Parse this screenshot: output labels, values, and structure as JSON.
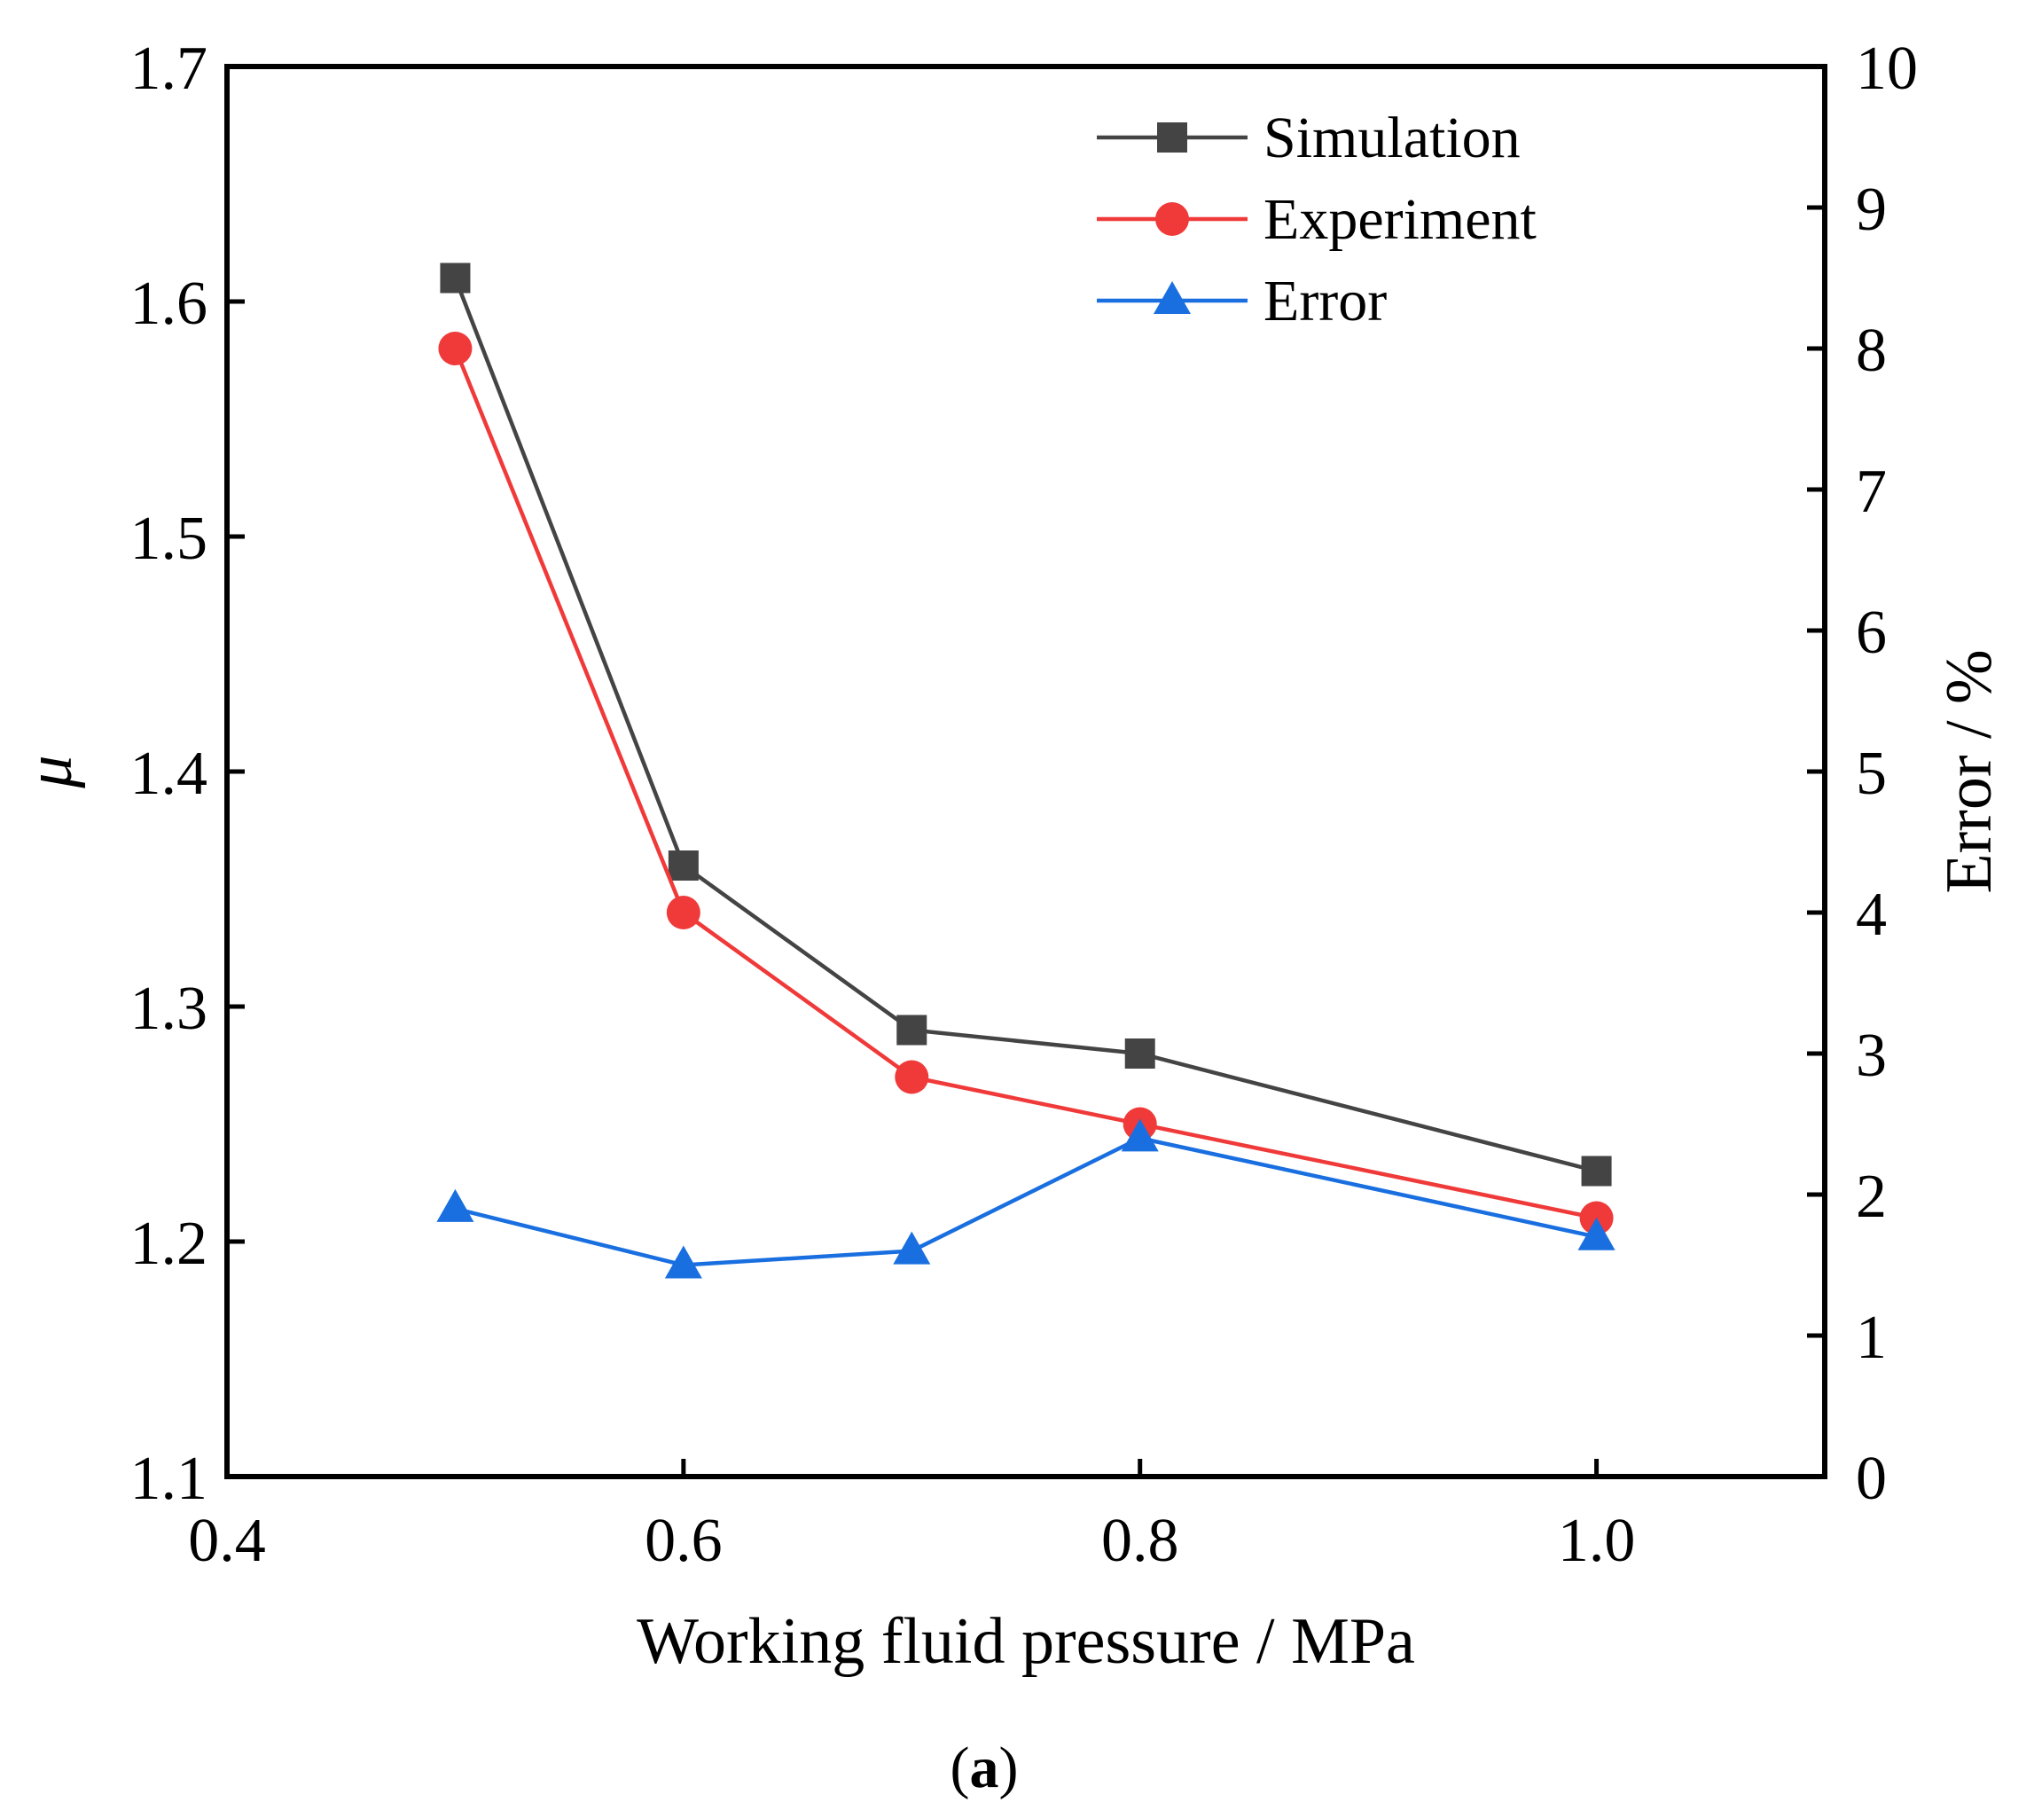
{
  "chart_data": {
    "type": "line",
    "panel_label": {
      "open": "(",
      "letter": "a",
      "close": ")"
    },
    "xlabel": "Working fluid pressure / MPa",
    "ylabel": "μ",
    "y2label": "Error / %",
    "xlim": [
      0.4,
      1.1
    ],
    "ylim": [
      1.1,
      1.7
    ],
    "y2lim": [
      0,
      10
    ],
    "xticks": [
      "0.4",
      "0.6",
      "0.8",
      "1.0"
    ],
    "yticks": [
      "1.1",
      "1.2",
      "1.3",
      "1.4",
      "1.5",
      "1.6",
      "1.7"
    ],
    "y2ticks": [
      "0",
      "1",
      "2",
      "3",
      "4",
      "5",
      "6",
      "7",
      "8",
      "9",
      "10"
    ],
    "grid": false,
    "legend_position": "top-right",
    "x": [
      0.5,
      0.6,
      0.7,
      0.8,
      1.0
    ],
    "series": [
      {
        "name": "Simulation",
        "axis": "left",
        "marker": "square",
        "color": "#444444",
        "values": [
          1.61,
          1.36,
          1.29,
          1.28,
          1.23
        ]
      },
      {
        "name": "Experiment",
        "axis": "left",
        "marker": "circle",
        "color": "#f03a3a",
        "values": [
          1.58,
          1.34,
          1.27,
          1.25,
          1.21
        ]
      },
      {
        "name": "Error",
        "axis": "right",
        "marker": "triangle",
        "color": "#1a6fe0",
        "values": [
          1.9,
          1.5,
          1.6,
          2.4,
          1.7
        ]
      }
    ]
  }
}
